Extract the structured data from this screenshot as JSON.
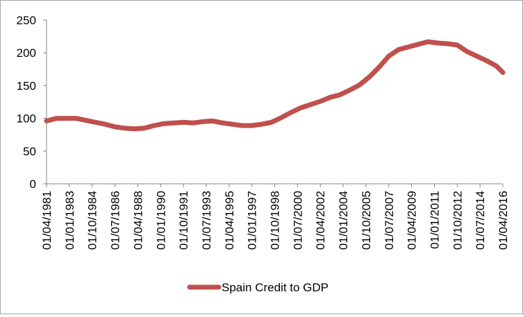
{
  "chart_data": {
    "type": "line",
    "title": "",
    "xlabel": "",
    "ylabel": "",
    "ylim": [
      0,
      250
    ],
    "yticks": [
      0,
      50,
      100,
      150,
      200,
      250
    ],
    "xtick_labels": [
      "01/04/1981",
      "01/01/1983",
      "01/10/1984",
      "01/07/1986",
      "01/04/1988",
      "01/01/1990",
      "01/10/1991",
      "01/07/1993",
      "01/04/1995",
      "01/01/1997",
      "01/10/1998",
      "01/07/2000",
      "01/04/2002",
      "01/01/2004",
      "01/10/2005",
      "01/07/2007",
      "01/04/2009",
      "01/01/2011",
      "01/10/2012",
      "01/07/2014",
      "01/04/2016"
    ],
    "grid": false,
    "legend_position": "bottom",
    "series": [
      {
        "name": "Spain Credit to GDP",
        "color": "#c0504d",
        "x": [
          "01/04/1981",
          "01/01/1982",
          "01/10/1982",
          "01/07/1983",
          "01/04/1984",
          "01/01/1985",
          "01/10/1985",
          "01/07/1986",
          "01/04/1987",
          "01/01/1988",
          "01/10/1988",
          "01/07/1989",
          "01/04/1990",
          "01/01/1991",
          "01/10/1991",
          "01/07/1992",
          "01/04/1993",
          "01/01/1994",
          "01/10/1994",
          "01/07/1995",
          "01/04/1996",
          "01/01/1997",
          "01/10/1997",
          "01/07/1998",
          "01/04/1999",
          "01/01/2000",
          "01/10/2000",
          "01/07/2001",
          "01/04/2002",
          "01/01/2003",
          "01/10/2003",
          "01/07/2004",
          "01/04/2005",
          "01/01/2006",
          "01/10/2006",
          "01/07/2007",
          "01/04/2008",
          "01/01/2009",
          "01/10/2009",
          "01/07/2010",
          "01/04/2011",
          "01/01/2012",
          "01/10/2012",
          "01/07/2013",
          "01/04/2014",
          "01/01/2015",
          "01/10/2015",
          "01/04/2016"
        ],
        "values": [
          96,
          100,
          100,
          100,
          97,
          94,
          91,
          87,
          85,
          84,
          85,
          89,
          92,
          93,
          94,
          93,
          95,
          96,
          93,
          91,
          89,
          89,
          91,
          94,
          101,
          109,
          116,
          121,
          126,
          132,
          136,
          143,
          151,
          163,
          178,
          195,
          205,
          209,
          213,
          217,
          215,
          214,
          212,
          202,
          195,
          188,
          180,
          170
        ]
      }
    ]
  }
}
